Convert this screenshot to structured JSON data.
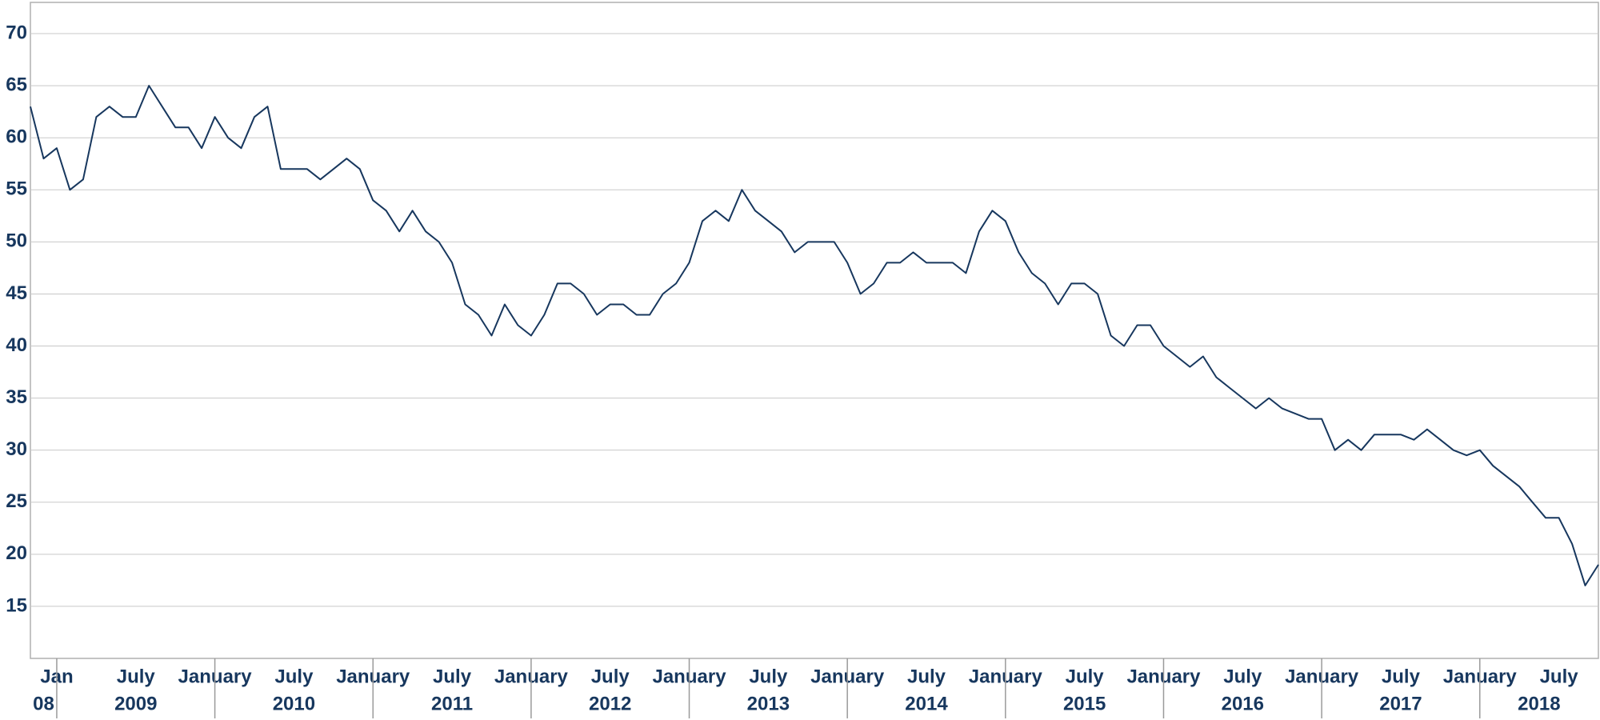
{
  "chart_data": {
    "type": "line",
    "x": [
      "2008-11",
      "2008-12",
      "2009-01",
      "2009-02",
      "2009-03",
      "2009-04",
      "2009-05",
      "2009-06",
      "2009-07",
      "2009-08",
      "2009-09",
      "2009-10",
      "2009-11",
      "2009-12",
      "2010-01",
      "2010-02",
      "2010-03",
      "2010-04",
      "2010-05",
      "2010-06",
      "2010-07",
      "2010-08",
      "2010-09",
      "2010-10",
      "2010-11",
      "2010-12",
      "2011-01",
      "2011-02",
      "2011-03",
      "2011-04",
      "2011-05",
      "2011-06",
      "2011-07",
      "2011-08",
      "2011-09",
      "2011-10",
      "2011-11",
      "2011-12",
      "2012-01",
      "2012-02",
      "2012-03",
      "2012-04",
      "2012-05",
      "2012-06",
      "2012-07",
      "2012-08",
      "2012-09",
      "2012-10",
      "2012-11",
      "2012-12",
      "2013-01",
      "2013-02",
      "2013-03",
      "2013-04",
      "2013-05",
      "2013-06",
      "2013-07",
      "2013-08",
      "2013-09",
      "2013-10",
      "2013-11",
      "2013-12",
      "2014-01",
      "2014-02",
      "2014-03",
      "2014-04",
      "2014-05",
      "2014-06",
      "2014-07",
      "2014-08",
      "2014-09",
      "2014-10",
      "2014-11",
      "2014-12",
      "2015-01",
      "2015-02",
      "2015-03",
      "2015-04",
      "2015-05",
      "2015-06",
      "2015-07",
      "2015-08",
      "2015-09",
      "2015-10",
      "2015-11",
      "2015-12",
      "2016-01",
      "2016-02",
      "2016-03",
      "2016-04",
      "2016-05",
      "2016-06",
      "2016-07",
      "2016-08",
      "2016-09",
      "2016-10",
      "2016-11",
      "2016-12",
      "2017-01",
      "2017-02",
      "2017-03",
      "2017-04",
      "2017-05",
      "2017-06",
      "2017-07",
      "2017-08",
      "2017-09",
      "2017-10",
      "2017-11",
      "2017-12",
      "2018-01",
      "2018-02",
      "2018-03",
      "2018-04",
      "2018-05",
      "2018-06",
      "2018-07",
      "2018-08",
      "2018-09",
      "2018-10"
    ],
    "values": [
      63,
      58,
      59,
      55,
      56,
      62,
      63,
      62,
      62,
      65,
      63,
      61,
      61,
      59,
      62,
      60,
      59,
      62,
      63,
      57,
      57,
      57,
      56,
      57,
      58,
      57,
      54,
      53,
      51,
      53,
      51,
      50,
      48,
      44,
      43,
      41,
      44,
      42,
      41,
      43,
      46,
      46,
      45,
      43,
      44,
      44,
      43,
      43,
      45,
      46,
      48,
      52,
      53,
      52,
      55,
      53,
      52,
      51,
      49,
      50,
      50,
      50,
      48,
      45,
      46,
      48,
      48,
      49,
      48,
      48,
      48,
      47,
      51,
      53,
      52,
      49,
      47,
      46,
      44,
      46,
      46,
      45,
      41,
      40,
      42,
      42,
      40,
      39,
      38,
      39,
      37,
      36,
      35,
      34,
      35,
      34,
      33.5,
      33,
      33,
      30,
      31,
      30,
      31.5,
      31.5,
      31.5,
      31,
      32,
      31,
      30,
      29.5,
      30,
      28.5,
      27.5,
      26.5,
      25,
      23.5,
      23.5,
      21,
      17,
      19
    ],
    "color": "#17375e",
    "xlim": [
      "2008-11",
      "2018-10"
    ],
    "xticks": [
      {
        "value": "2009-01",
        "label": "Jan"
      },
      {
        "value": "2009-07",
        "label": "July"
      },
      {
        "value": "2010-01",
        "label": "January"
      },
      {
        "value": "2010-07",
        "label": "July"
      },
      {
        "value": "2011-01",
        "label": "January"
      },
      {
        "value": "2011-07",
        "label": "July"
      },
      {
        "value": "2012-01",
        "label": "January"
      },
      {
        "value": "2012-07",
        "label": "July"
      },
      {
        "value": "2013-01",
        "label": "January"
      },
      {
        "value": "2013-07",
        "label": "July"
      },
      {
        "value": "2014-01",
        "label": "January"
      },
      {
        "value": "2014-07",
        "label": "July"
      },
      {
        "value": "2015-01",
        "label": "January"
      },
      {
        "value": "2015-07",
        "label": "July"
      },
      {
        "value": "2016-01",
        "label": "January"
      },
      {
        "value": "2016-07",
        "label": "July"
      },
      {
        "value": "2017-01",
        "label": "January"
      },
      {
        "value": "2017-07",
        "label": "July"
      },
      {
        "value": "2018-01",
        "label": "January"
      },
      {
        "value": "2018-07",
        "label": "July"
      }
    ],
    "x_groups": [
      {
        "label": "08",
        "start": "2008-11",
        "end": "2009-01"
      },
      {
        "label": "2009",
        "start": "2009-01",
        "end": "2010-01"
      },
      {
        "label": "2010",
        "start": "2010-01",
        "end": "2011-01"
      },
      {
        "label": "2011",
        "start": "2011-01",
        "end": "2012-01"
      },
      {
        "label": "2012",
        "start": "2012-01",
        "end": "2013-01"
      },
      {
        "label": "2013",
        "start": "2013-01",
        "end": "2014-01"
      },
      {
        "label": "2014",
        "start": "2014-01",
        "end": "2015-01"
      },
      {
        "label": "2015",
        "start": "2015-01",
        "end": "2016-01"
      },
      {
        "label": "2016",
        "start": "2016-01",
        "end": "2017-01"
      },
      {
        "label": "2017",
        "start": "2017-01",
        "end": "2018-01"
      },
      {
        "label": "2018",
        "start": "2018-01",
        "end": "2018-10"
      }
    ],
    "ylim": [
      10,
      73
    ],
    "yticks": [
      15,
      20,
      25,
      30,
      35,
      40,
      45,
      50,
      55,
      60,
      65,
      70
    ],
    "grid": true
  }
}
